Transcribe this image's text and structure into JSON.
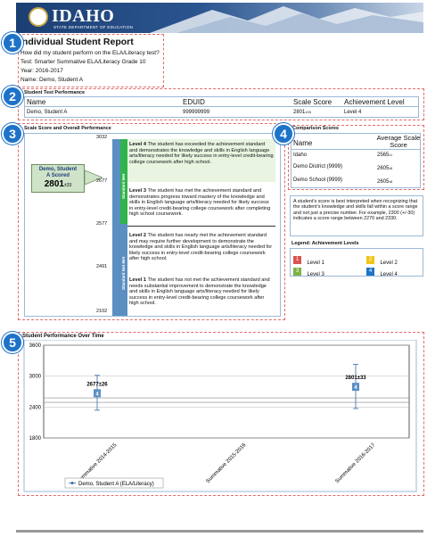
{
  "header": {
    "logo_text": "IDAHO",
    "logo_subtext": "STATE DEPARTMENT OF EDUCATION"
  },
  "badges": [
    "1",
    "2",
    "3",
    "4",
    "5"
  ],
  "report": {
    "title": "Individual Student Report",
    "question": "How did my student perform on the ELA/Literacy test?",
    "test_label": "Test:",
    "test_value": "Smarter Summative ELA/Literacy Grade 10",
    "year_label": "Year:",
    "year_value": "2016-2017",
    "name_label": "Name:",
    "name_value": "Demo, Student A"
  },
  "test_performance": {
    "section_title": "Student Test Performance",
    "columns": [
      "Name",
      "EDUID",
      "Scale Score",
      "Achievement Level"
    ],
    "row": {
      "name": "Demo, Student A",
      "eduid": "999999999",
      "score": "2801",
      "score_err": "±33",
      "level": "Level 4"
    }
  },
  "scale": {
    "section_title": "Scale Score and Overall Performance",
    "student_label": "Demo, Student A Scored",
    "student_score": "2801",
    "student_err": "±33",
    "ticks": [
      "3032",
      "2677",
      "2577",
      "2491",
      "2102"
    ],
    "bar_labels": {
      "exceeded": "Exceeded Standard",
      "met": "Met Standard",
      "nearly": "Nearly Met Standard",
      "not_met": "Not Met Standard",
      "standard_met": "Standard Met",
      "standard_not_met": "Standard Not Met"
    },
    "levels": [
      {
        "title": "Level 4",
        "text": "The student has exceeded the achievement standard and demonstrates the knowledge and skills in English language arts/literacy needed for likely success in entry-level credit-bearing college coursework after high school."
      },
      {
        "title": "Level 3",
        "text": "The student has met the achievement standard and demonstrates progress toward mastery of the knowledge and skills in English language arts/literacy needed for likely success in entry-level credit-bearing college coursework after completing high school coursework."
      },
      {
        "title": "Level 2",
        "text": "The student has nearly met the achievement standard and may require further development to demonstrate the knowledge and skills in English language arts/literacy needed for likely success in entry-level credit-bearing college coursework after high school."
      },
      {
        "title": "Level 1",
        "text": "The student has not met the achievement standard and needs substantial improvement to demonstrate the knowledge and skills in English language arts/literacy needed for likely success in entry-level credit-bearing college coursework after high school."
      }
    ]
  },
  "comparison": {
    "section_title": "Comparison Scores",
    "col_name": "Name",
    "col_score": "Average Scale Score",
    "rows": [
      {
        "name": "Idaho",
        "score": "2565",
        "err": "±1"
      },
      {
        "name": "Demo District (9999)",
        "score": "2605",
        "err": "±8"
      },
      {
        "name": "Demo School (9999)",
        "score": "2605",
        "err": "±8"
      }
    ],
    "note": "A student's score is best interpreted when recognizing that the student's knowledge and skills fall within a score range and not just a precise number. For example, 2300 (+/-30) indicates a score range between 2270 and 2330."
  },
  "legend": {
    "title": "Legend: Achievement Levels",
    "items": [
      {
        "num": "1",
        "label": "Level 1",
        "color": "#d9534f"
      },
      {
        "num": "2",
        "label": "Level 2",
        "color": "#f0c419"
      },
      {
        "num": "3",
        "label": "Level 3",
        "color": "#7cb342"
      },
      {
        "num": "4",
        "label": "Level 4",
        "color": "#1e73c8"
      }
    ]
  },
  "chart_data": {
    "type": "scatter",
    "title": "Student Performance Over Time",
    "categories": [
      "Summative 2014-2015",
      "Summative 2015-2016",
      "Summative 2016-2017"
    ],
    "series": [
      {
        "name": "Demo, Student A (ELA/Literacy)",
        "points": [
          {
            "category": "Summative 2014-2015",
            "value": 2677,
            "err": 26,
            "label": "2677±26",
            "level": "4"
          },
          {
            "category": "Summative 2016-2017",
            "value": 2801,
            "err": 33,
            "label": "2801±33",
            "level": "4"
          }
        ]
      }
    ],
    "y_ticks": [
      "3600",
      "3000",
      "2400",
      "1800"
    ],
    "ylim": [
      1800,
      3600
    ],
    "reference_lines": [
      2577,
      2491
    ]
  },
  "colors": {
    "accent": "#1e73c8",
    "dash": "#e36b6b",
    "level4": "#2bb24c"
  }
}
